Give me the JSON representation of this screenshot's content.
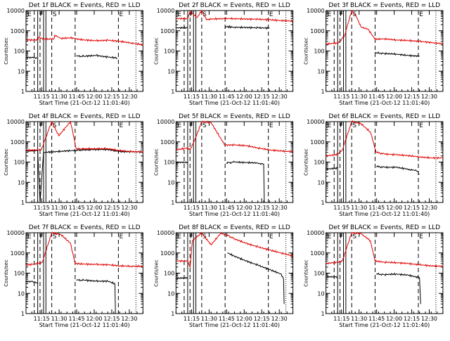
{
  "colors": {
    "events": "#000000",
    "lld": "#e00000",
    "axes": "#000000"
  },
  "chart_data": {
    "type": "line",
    "x_axis": {
      "label": "Start Time (21-Oct-12 11:01:40)",
      "tick_labels": [
        "11:15",
        "11:30",
        "11:45",
        "12:00",
        "12:15",
        "12:30"
      ],
      "tick_minutes": [
        13.33,
        28.33,
        43.33,
        58.33,
        73.33,
        88.33
      ],
      "xlim_minutes": [
        0,
        100
      ]
    },
    "y_axis": {
      "label": "Counts/sec",
      "scale": "log",
      "ylim": [
        1,
        10000
      ],
      "tick_labels": [
        "1",
        "10",
        "100",
        "1000",
        "10000"
      ],
      "tick_values": [
        1,
        10,
        100,
        1000,
        10000
      ]
    },
    "dashed_markers_minutes": [
      7,
      12,
      22,
      42,
      79,
      94
    ],
    "solid_markers_minutes": [
      10,
      15,
      17
    ],
    "flags": [
      {
        "label": "E",
        "minute": 0
      },
      {
        "label": "F",
        "minute": 10.5
      },
      {
        "label": "S",
        "minute": 21.5
      },
      {
        "label": "E",
        "minute": 78.5
      }
    ],
    "panels": [
      {
        "title": "Det 1f BLACK = Events, RED = LLD",
        "flags_present": [
          "E",
          "F",
          "S",
          "E"
        ],
        "series": [
          {
            "name": "Events",
            "x": [
              0,
              5,
              9.5,
              10.5,
              42.5,
              43,
              50,
              60,
              70,
              78
            ],
            "y": [
              45,
              48,
              45,
              null,
              null,
              55,
              55,
              60,
              50,
              45
            ]
          },
          {
            "name": "LLD",
            "x": [
              0,
              10,
              11,
              16,
              24,
              24.5,
              30,
              40,
              42,
              50,
              60,
              70,
              80,
              90,
              100
            ],
            "y": [
              350,
              350,
              500,
              380,
              400,
              600,
              420,
              450,
              400,
              350,
              320,
              340,
              300,
              250,
              200
            ]
          }
        ]
      },
      {
        "title": "Det 2f BLACK = Events, RED = LLD",
        "flags_present": [
          "E",
          "F",
          "S",
          "E"
        ],
        "series": [
          {
            "name": "Events",
            "x": [
              0,
              10,
              15,
              40,
              42,
              42.5,
              50,
              60,
              70,
              80
            ],
            "y": [
              1400,
              1400,
              null,
              null,
              1300,
              1600,
              1500,
              1450,
              1400,
              1350
            ]
          },
          {
            "name": "LLD",
            "x": [
              0,
              10,
              12,
              18,
              22,
              26,
              30,
              40,
              50,
              60,
              70,
              80,
              90,
              100
            ],
            "y": [
              4000,
              4000,
              9000,
              4500,
              10000,
              3500,
              3800,
              4000,
              4000,
              3800,
              3700,
              3500,
              3200,
              3000
            ]
          }
        ]
      },
      {
        "title": "Det 3f BLACK = Events, RED = LLD",
        "flags_present": [
          "E",
          "F",
          "S",
          "E"
        ],
        "series": [
          {
            "name": "Events",
            "x": [
              42,
              43,
              50,
              60,
              70,
              80
            ],
            "y": [
              85,
              80,
              75,
              70,
              60,
              55
            ]
          },
          {
            "name": "LLD",
            "x": [
              0,
              10,
              12,
              16,
              22,
              26,
              30,
              36,
              42,
              50,
              60,
              70,
              80,
              90,
              100
            ],
            "y": [
              220,
              250,
              300,
              600,
              10000,
              5000,
              1500,
              1200,
              380,
              400,
              350,
              330,
              300,
              260,
              230
            ]
          }
        ]
      },
      {
        "title": "Det 4f BLACK = Events, RED = LLD",
        "flags_present": [
          "E",
          "F",
          "S",
          "E"
        ],
        "series": [
          {
            "name": "Events",
            "x": [
              0,
              10,
              12,
              15,
              43,
              50,
              60,
              70,
              80,
              90,
              100
            ],
            "y": [
              350,
              380,
              1,
              300,
              380,
              400,
              420,
              420,
              330,
              320,
              320
            ]
          },
          {
            "name": "LLD",
            "x": [
              0,
              10,
              13,
              22,
              28,
              38,
              43,
              50,
              60,
              70,
              80,
              90,
              100
            ],
            "y": [
              380,
              400,
              400,
              10000,
              2000,
              10000,
              450,
              450,
              460,
              460,
              370,
              330,
              320
            ]
          }
        ]
      },
      {
        "title": "Det 5f BLACK = Events, RED = LLD",
        "flags_present": [
          "E",
          "F",
          "S",
          "E"
        ],
        "series": [
          {
            "name": "Events",
            "x": [
              0,
              5,
              10,
              42,
              43,
              50,
              60,
              70,
              75,
              75.5
            ],
            "y": [
              90,
              100,
              90,
              null,
              90,
              100,
              95,
              90,
              80,
              1
            ]
          },
          {
            "name": "LLD",
            "x": [
              0,
              10,
              12,
              16,
              22,
              30,
              40,
              42,
              50,
              60,
              70,
              80,
              90,
              100
            ],
            "y": [
              400,
              500,
              400,
              1200,
              10000,
              9000,
              1000,
              700,
              700,
              650,
              500,
              400,
              350,
              330
            ]
          }
        ]
      },
      {
        "title": "Det 6f BLACK = Events, RED = LLD",
        "flags_present": [
          "E",
          "F",
          "S",
          "E"
        ],
        "series": [
          {
            "name": "Events",
            "x": [
              0,
              10,
              42,
              43,
              50,
              60,
              70,
              75,
              78,
              80
            ],
            "y": [
              45,
              50,
              null,
              60,
              55,
              55,
              45,
              40,
              35,
              25
            ]
          },
          {
            "name": "LLD",
            "x": [
              0,
              10,
              14,
              22,
              30,
              38,
              43,
              50,
              60,
              70,
              80,
              90,
              100
            ],
            "y": [
              200,
              240,
              400,
              10000,
              8000,
              3000,
              300,
              250,
              230,
              210,
              180,
              160,
              160
            ]
          }
        ]
      },
      {
        "title": "Det 7f BLACK = Events, RED = LLD",
        "flags_present": [
          "E",
          "F",
          "S",
          "E"
        ],
        "series": [
          {
            "name": "Events",
            "x": [
              0,
              5,
              10,
              42,
              43,
              50,
              60,
              70,
              76,
              76.5
            ],
            "y": [
              35,
              40,
              30,
              null,
              45,
              45,
              40,
              40,
              30,
              1
            ]
          },
          {
            "name": "LLD",
            "x": [
              0,
              10,
              14,
              22,
              30,
              38,
              42,
              50,
              60,
              70,
              80,
              90,
              100
            ],
            "y": [
              250,
              300,
              350,
              10000,
              8000,
              3000,
              300,
              280,
              270,
              260,
              230,
              220,
              220
            ]
          }
        ]
      },
      {
        "title": "Det 8f BLACK = Events, RED = LLD",
        "flags_present": [
          "E",
          "F",
          "S",
          "E"
        ],
        "series": [
          {
            "name": "Events",
            "x": [
              0,
              5,
              10,
              43,
              44,
              50,
              60,
              70,
              80,
              90,
              92,
              92.5
            ],
            "y": [
              50,
              60,
              55,
              null,
              1000,
              700,
              400,
              250,
              150,
              90,
              50,
              3
            ]
          },
          {
            "name": "LLD",
            "x": [
              0,
              10,
              12,
              14,
              22,
              24,
              30,
              38,
              43,
              50,
              60,
              70,
              80,
              90,
              100
            ],
            "y": [
              400,
              400,
              200,
              4000,
              10000,
              7000,
              2500,
              9000,
              8000,
              5000,
              3000,
              2000,
              1400,
              1000,
              700
            ]
          }
        ]
      },
      {
        "title": "Det 9f BLACK = Events, RED = LLD",
        "flags_present": [
          "E",
          "F",
          "S",
          "E"
        ],
        "series": [
          {
            "name": "Events",
            "x": [
              0,
              5,
              10,
              42,
              43,
              50,
              60,
              70,
              80,
              81
            ],
            "y": [
              60,
              70,
              60,
              null,
              90,
              85,
              90,
              80,
              60,
              3
            ]
          },
          {
            "name": "LLD",
            "x": [
              0,
              10,
              14,
              22,
              30,
              38,
              42,
              50,
              60,
              70,
              80,
              90,
              100
            ],
            "y": [
              300,
              350,
              400,
              10000,
              9000,
              4000,
              400,
              350,
              330,
              300,
              260,
              230,
              220
            ]
          }
        ]
      }
    ]
  }
}
